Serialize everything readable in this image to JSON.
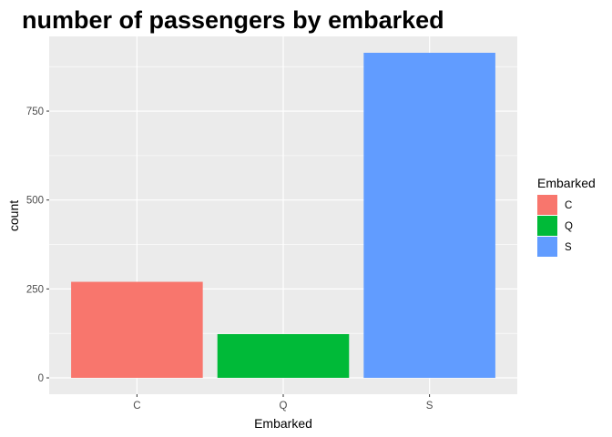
{
  "chart_data": {
    "type": "bar",
    "title": "number of passengers by embarked",
    "xlabel": "Embarked",
    "ylabel": "count",
    "categories": [
      "C",
      "Q",
      "S"
    ],
    "values": [
      270,
      123,
      914
    ],
    "colors": [
      "#F8766D",
      "#00BA38",
      "#619CFF"
    ],
    "ylim": [
      -46,
      960
    ],
    "yticks": [
      0,
      250,
      500,
      750
    ],
    "ytick_labels": [
      "0",
      "250",
      "500",
      "750"
    ],
    "grid": true,
    "panel_background": "#EBEBEB",
    "legend": {
      "title": "Embarked",
      "position": "right",
      "entries": [
        "C",
        "Q",
        "S"
      ]
    }
  }
}
